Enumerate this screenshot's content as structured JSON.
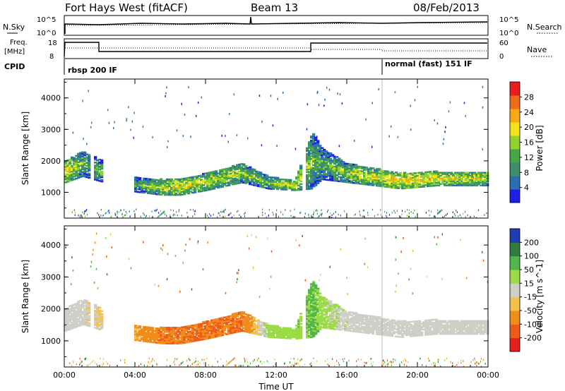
{
  "header": {
    "title": "Fort Hays West (fitACF)",
    "beam": "Beam 13",
    "date": "08/Feb/2013"
  },
  "summary": {
    "nsky_label": "N.Sky",
    "nsearch_label": "N.Search",
    "freq_label_1": "Freq.",
    "freq_label_2": "[MHz]",
    "nave_label": "Nave",
    "cpid_label": "CPID",
    "left_ticks_top": [
      "10^5",
      "10^0"
    ],
    "right_ticks_top": [
      "10^5",
      "10^0"
    ],
    "left_ticks_freq": [
      "18",
      "8"
    ],
    "right_ticks_nave": [
      "60",
      "0"
    ],
    "cpid_segments": [
      {
        "label": "rbsp 200 IF",
        "start_hr": 0
      },
      {
        "label": "normal (fast) 151 IF",
        "start_hr": 18
      }
    ]
  },
  "colors": {
    "power": [
      "#1f1fe6",
      "#2c6fb0",
      "#3f8f6a",
      "#45a845",
      "#8fd22c",
      "#f4e21c",
      "#f9a818",
      "#f06a1e",
      "#e61e1e"
    ],
    "velocity": [
      "#e61e1e",
      "#f05a1c",
      "#f08c1c",
      "#f4c04a",
      "#cfcfc8",
      "#9bdc46",
      "#52b74a",
      "#2e7d3e",
      "#1f3cb4"
    ]
  },
  "chart_data": [
    {
      "type": "heatmap",
      "name": "Power",
      "ylabel": "Slant Range [km]",
      "x_ticks": [
        "00:00",
        "04:00",
        "08:00",
        "12:00",
        "16:00",
        "20:00",
        "00:00"
      ],
      "xlim_hr": [
        0,
        24
      ],
      "y_ticks": [
        1000,
        2000,
        3000,
        4000
      ],
      "ylim": [
        180,
        4600
      ],
      "colorbar_label": "Power [dB]",
      "colorbar_ticks": [
        "4",
        "8",
        "12",
        "16",
        "20",
        "24",
        "28"
      ],
      "colorbar_range": [
        0,
        32
      ],
      "echo_band": [
        {
          "t": 0.0,
          "lo": 1300,
          "hi": 2000,
          "value": 22
        },
        {
          "t": 1.0,
          "lo": 1500,
          "hi": 2300,
          "value": 14
        },
        {
          "t": 4.0,
          "lo": 1000,
          "hi": 1450,
          "value": 12
        },
        {
          "t": 5.5,
          "lo": 900,
          "hi": 1400,
          "value": 18
        },
        {
          "t": 6.5,
          "lo": 900,
          "hi": 1400,
          "value": 20
        },
        {
          "t": 8.0,
          "lo": 1050,
          "hi": 1600,
          "value": 18
        },
        {
          "t": 10.0,
          "lo": 1300,
          "hi": 1900,
          "value": 16
        },
        {
          "t": 11.5,
          "lo": 1100,
          "hi": 1500,
          "value": 14
        },
        {
          "t": 13.0,
          "lo": 1050,
          "hi": 1350,
          "value": 20
        },
        {
          "t": 14.0,
          "lo": 1100,
          "hi": 2900,
          "value": 14
        },
        {
          "t": 14.5,
          "lo": 1400,
          "hi": 2400,
          "value": 12
        },
        {
          "t": 16.0,
          "lo": 1300,
          "hi": 1900,
          "value": 16
        },
        {
          "t": 19.0,
          "lo": 1100,
          "hi": 1600,
          "value": 22
        },
        {
          "t": 21.0,
          "lo": 1200,
          "hi": 1650,
          "value": 20
        },
        {
          "t": 24.0,
          "lo": 1200,
          "hi": 1650,
          "value": 18
        }
      ]
    },
    {
      "type": "heatmap",
      "name": "Velocity",
      "ylabel": "Slant Range [km]",
      "x_ticks": [
        "00:00",
        "04:00",
        "08:00",
        "12:00",
        "16:00",
        "20:00",
        "00:00"
      ],
      "xlim_hr": [
        0,
        24
      ],
      "xlabel": "Time UT",
      "y_ticks": [
        1000,
        2000,
        3000,
        4000
      ],
      "ylim": [
        180,
        4600
      ],
      "colorbar_label": "Velocity [m s^-1]",
      "colorbar_ticks": [
        "-200",
        "-100",
        "-50",
        "-15",
        "15",
        "50",
        "100",
        "200"
      ],
      "echo_band": [
        {
          "t": 0.0,
          "lo": 1300,
          "hi": 2000,
          "value": 0
        },
        {
          "t": 1.0,
          "lo": 1500,
          "hi": 2300,
          "value": 0
        },
        {
          "t": 4.0,
          "lo": 1000,
          "hi": 1450,
          "value": -50
        },
        {
          "t": 5.5,
          "lo": 900,
          "hi": 1400,
          "value": -100
        },
        {
          "t": 6.5,
          "lo": 900,
          "hi": 1400,
          "value": -100
        },
        {
          "t": 8.0,
          "lo": 1050,
          "hi": 1600,
          "value": -100
        },
        {
          "t": 10.0,
          "lo": 1300,
          "hi": 1900,
          "value": -100
        },
        {
          "t": 11.5,
          "lo": 1100,
          "hi": 1500,
          "value": 30
        },
        {
          "t": 13.0,
          "lo": 1050,
          "hi": 1350,
          "value": 30
        },
        {
          "t": 14.0,
          "lo": 1100,
          "hi": 2900,
          "value": 60
        },
        {
          "t": 14.5,
          "lo": 1400,
          "hi": 2400,
          "value": 30
        },
        {
          "t": 16.0,
          "lo": 1300,
          "hi": 1900,
          "value": 0
        },
        {
          "t": 19.0,
          "lo": 1100,
          "hi": 1600,
          "value": 0
        },
        {
          "t": 21.0,
          "lo": 1200,
          "hi": 1650,
          "value": 0
        },
        {
          "t": 24.0,
          "lo": 1200,
          "hi": 1650,
          "value": 0
        }
      ]
    }
  ]
}
